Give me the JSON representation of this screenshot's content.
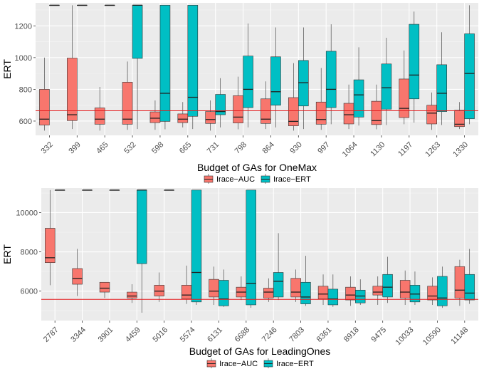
{
  "colors": {
    "auc": "#F8766D",
    "ert": "#00BFC4",
    "panel": "#EBEBEB",
    "refline": "#E41A1C"
  },
  "legend": {
    "auc": "Irace−AUC",
    "ert": "Irace−ERT"
  },
  "chart_data": [
    {
      "type": "box",
      "title": "",
      "xlabel": "Budget of GAs for OneMax",
      "ylabel": "ERT",
      "ylim": [
        510,
        1345
      ],
      "yticks": [
        600,
        800,
        1000,
        1200
      ],
      "reference_line": 665,
      "categories": [
        "332",
        "399",
        "465",
        "532",
        "598",
        "665",
        "731",
        "798",
        "864",
        "930",
        "997",
        "1064",
        "1130",
        "1197",
        "1263",
        "1330"
      ],
      "series": [
        {
          "name": "Irace−AUC",
          "boxes": [
            {
              "min": 540,
              "q1": 575,
              "median": 612,
              "q3": 800,
              "max": 1000
            },
            {
              "min": 550,
              "q1": 603,
              "median": 640,
              "q3": 997,
              "max": 1330
            },
            {
              "min": 540,
              "q1": 580,
              "median": 612,
              "q3": 683,
              "max": 815
            },
            {
              "min": 545,
              "q1": 580,
              "median": 612,
              "q3": 845,
              "max": 975
            },
            {
              "min": 545,
              "q1": 590,
              "median": 618,
              "q3": 658,
              "max": 730
            },
            {
              "min": 560,
              "q1": 590,
              "median": 612,
              "q3": 645,
              "max": 720
            },
            {
              "min": 540,
              "q1": 585,
              "median": 610,
              "q3": 660,
              "max": 730
            },
            {
              "min": 548,
              "q1": 588,
              "median": 625,
              "q3": 760,
              "max": 880
            },
            {
              "min": 550,
              "q1": 585,
              "median": 612,
              "q3": 740,
              "max": 850
            },
            {
              "min": 540,
              "q1": 570,
              "median": 598,
              "q3": 748,
              "max": 965
            },
            {
              "min": 545,
              "q1": 580,
              "median": 610,
              "q3": 720,
              "max": 935
            },
            {
              "min": 550,
              "q1": 582,
              "median": 640,
              "q3": 712,
              "max": 830
            },
            {
              "min": 548,
              "q1": 578,
              "median": 603,
              "q3": 725,
              "max": 830
            },
            {
              "min": 580,
              "q1": 622,
              "median": 680,
              "q3": 865,
              "max": 1045
            },
            {
              "min": 545,
              "q1": 582,
              "median": 650,
              "q3": 700,
              "max": 780
            },
            {
              "min": 550,
              "q1": 565,
              "median": 580,
              "q3": 668,
              "max": 720
            }
          ]
        },
        {
          "name": "Irace−ERT",
          "boxes": [
            {
              "min": 1330,
              "q1": 1330,
              "median": 1330,
              "q3": 1330,
              "max": 1330
            },
            {
              "min": 1330,
              "q1": 1330,
              "median": 1330,
              "q3": 1330,
              "max": 1330
            },
            {
              "min": 1330,
              "q1": 1330,
              "median": 1330,
              "q3": 1330,
              "max": 1330
            },
            {
              "min": 550,
              "q1": 995,
              "median": 1330,
              "q3": 1330,
              "max": 1330
            },
            {
              "min": 548,
              "q1": 598,
              "median": 775,
              "q3": 1330,
              "max": 1330
            },
            {
              "min": 550,
              "q1": 630,
              "median": 750,
              "q3": 1330,
              "max": 1330
            },
            {
              "min": 560,
              "q1": 640,
              "median": 660,
              "q3": 768,
              "max": 870
            },
            {
              "min": 560,
              "q1": 685,
              "median": 800,
              "q3": 1010,
              "max": 1215
            },
            {
              "min": 560,
              "q1": 700,
              "median": 785,
              "q3": 1005,
              "max": 1190
            },
            {
              "min": 550,
              "q1": 695,
              "median": 842,
              "q3": 982,
              "max": 1190
            },
            {
              "min": 580,
              "q1": 685,
              "median": 800,
              "q3": 1040,
              "max": 1210
            },
            {
              "min": 572,
              "q1": 625,
              "median": 765,
              "q3": 860,
              "max": 1065
            },
            {
              "min": 575,
              "q1": 675,
              "median": 810,
              "q3": 960,
              "max": 1125
            },
            {
              "min": 590,
              "q1": 740,
              "median": 890,
              "q3": 1210,
              "max": 1290
            },
            {
              "min": 575,
              "q1": 660,
              "median": 775,
              "q3": 955,
              "max": 1160
            },
            {
              "min": 580,
              "q1": 615,
              "median": 900,
              "q3": 1150,
              "max": 1330
            }
          ]
        }
      ]
    },
    {
      "type": "box",
      "title": "",
      "xlabel": "Budget of GAs for LeadingOnes",
      "ylabel": "ERT",
      "ylim": [
        4500,
        11250
      ],
      "yticks": [
        6000,
        8000,
        10000
      ],
      "reference_line": 5580,
      "categories": [
        "2787",
        "3344",
        "3901",
        "4459",
        "5016",
        "5574",
        "6131",
        "6688",
        "7246",
        "7803",
        "8361",
        "8918",
        "9475",
        "10033",
        "10590",
        "11148"
      ],
      "series": [
        {
          "name": "Irace−AUC",
          "boxes": [
            {
              "min": 6300,
              "q1": 7450,
              "median": 7700,
              "q3": 9200,
              "max": 11148
            },
            {
              "min": 5750,
              "q1": 6350,
              "median": 6650,
              "q3": 7150,
              "max": 8150
            },
            {
              "min": 5650,
              "q1": 5950,
              "median": 6150,
              "q3": 6450,
              "max": 6450
            },
            {
              "min": 5400,
              "q1": 5650,
              "median": 5750,
              "q3": 5950,
              "max": 6350
            },
            {
              "min": 5450,
              "q1": 5750,
              "median": 6000,
              "q3": 6300,
              "max": 6950
            },
            {
              "min": 5350,
              "q1": 5600,
              "median": 5800,
              "q3": 6300,
              "max": 7300
            },
            {
              "min": 5300,
              "q1": 5700,
              "median": 6000,
              "q3": 6600,
              "max": 7250
            },
            {
              "min": 5550,
              "q1": 5700,
              "median": 5950,
              "q3": 6200,
              "max": 6750
            },
            {
              "min": 5450,
              "q1": 5650,
              "median": 5950,
              "q3": 6150,
              "max": 6650
            },
            {
              "min": 5450,
              "q1": 5700,
              "median": 5950,
              "q3": 6650,
              "max": 7100
            },
            {
              "min": 5300,
              "q1": 5600,
              "median": 5850,
              "q3": 6250,
              "max": 6850
            },
            {
              "min": 5250,
              "q1": 5550,
              "median": 5800,
              "q3": 6200,
              "max": 6750
            },
            {
              "min": 5300,
              "q1": 5800,
              "median": 5950,
              "q3": 6250,
              "max": 6750
            },
            {
              "min": 5300,
              "q1": 5650,
              "median": 5950,
              "q3": 6550,
              "max": 7050
            },
            {
              "min": 5300,
              "q1": 5550,
              "median": 5750,
              "q3": 6250,
              "max": 6700
            },
            {
              "min": 5250,
              "q1": 5650,
              "median": 6050,
              "q3": 7250,
              "max": 7600
            }
          ]
        },
        {
          "name": "Irace−ERT",
          "boxes": [
            {
              "min": 11148,
              "q1": 11148,
              "median": 11148,
              "q3": 11148,
              "max": 11148
            },
            {
              "min": 11148,
              "q1": 11148,
              "median": 11148,
              "q3": 11148,
              "max": 11148
            },
            {
              "min": 11148,
              "q1": 11148,
              "median": 11148,
              "q3": 11148,
              "max": 11148
            },
            {
              "min": 4900,
              "q1": 7400,
              "median": 11148,
              "q3": 11148,
              "max": 11148
            },
            {
              "min": 11148,
              "q1": 11148,
              "median": 11148,
              "q3": 11148,
              "max": 11148
            },
            {
              "min": 5300,
              "q1": 5450,
              "median": 6950,
              "q3": 11148,
              "max": 11148
            },
            {
              "min": 5200,
              "q1": 5250,
              "median": 5600,
              "q3": 6550,
              "max": 7100
            },
            {
              "min": 5150,
              "q1": 5300,
              "median": 6400,
              "q3": 11148,
              "max": 11148
            },
            {
              "min": 5550,
              "q1": 5700,
              "median": 6500,
              "q3": 6950,
              "max": 8950
            },
            {
              "min": 5250,
              "q1": 5350,
              "median": 5700,
              "q3": 6450,
              "max": 7800
            },
            {
              "min": 5200,
              "q1": 5300,
              "median": 5600,
              "q3": 6100,
              "max": 6850
            },
            {
              "min": 5300,
              "q1": 5400,
              "median": 5750,
              "q3": 6050,
              "max": 6600
            },
            {
              "min": 5400,
              "q1": 5700,
              "median": 6200,
              "q3": 6850,
              "max": 7750
            },
            {
              "min": 5300,
              "q1": 5450,
              "median": 5850,
              "q3": 6300,
              "max": 7000
            },
            {
              "min": 5150,
              "q1": 5250,
              "median": 5650,
              "q3": 6750,
              "max": 7250
            },
            {
              "min": 5350,
              "q1": 5550,
              "median": 5900,
              "q3": 6850,
              "max": 8150
            }
          ]
        }
      ]
    }
  ]
}
